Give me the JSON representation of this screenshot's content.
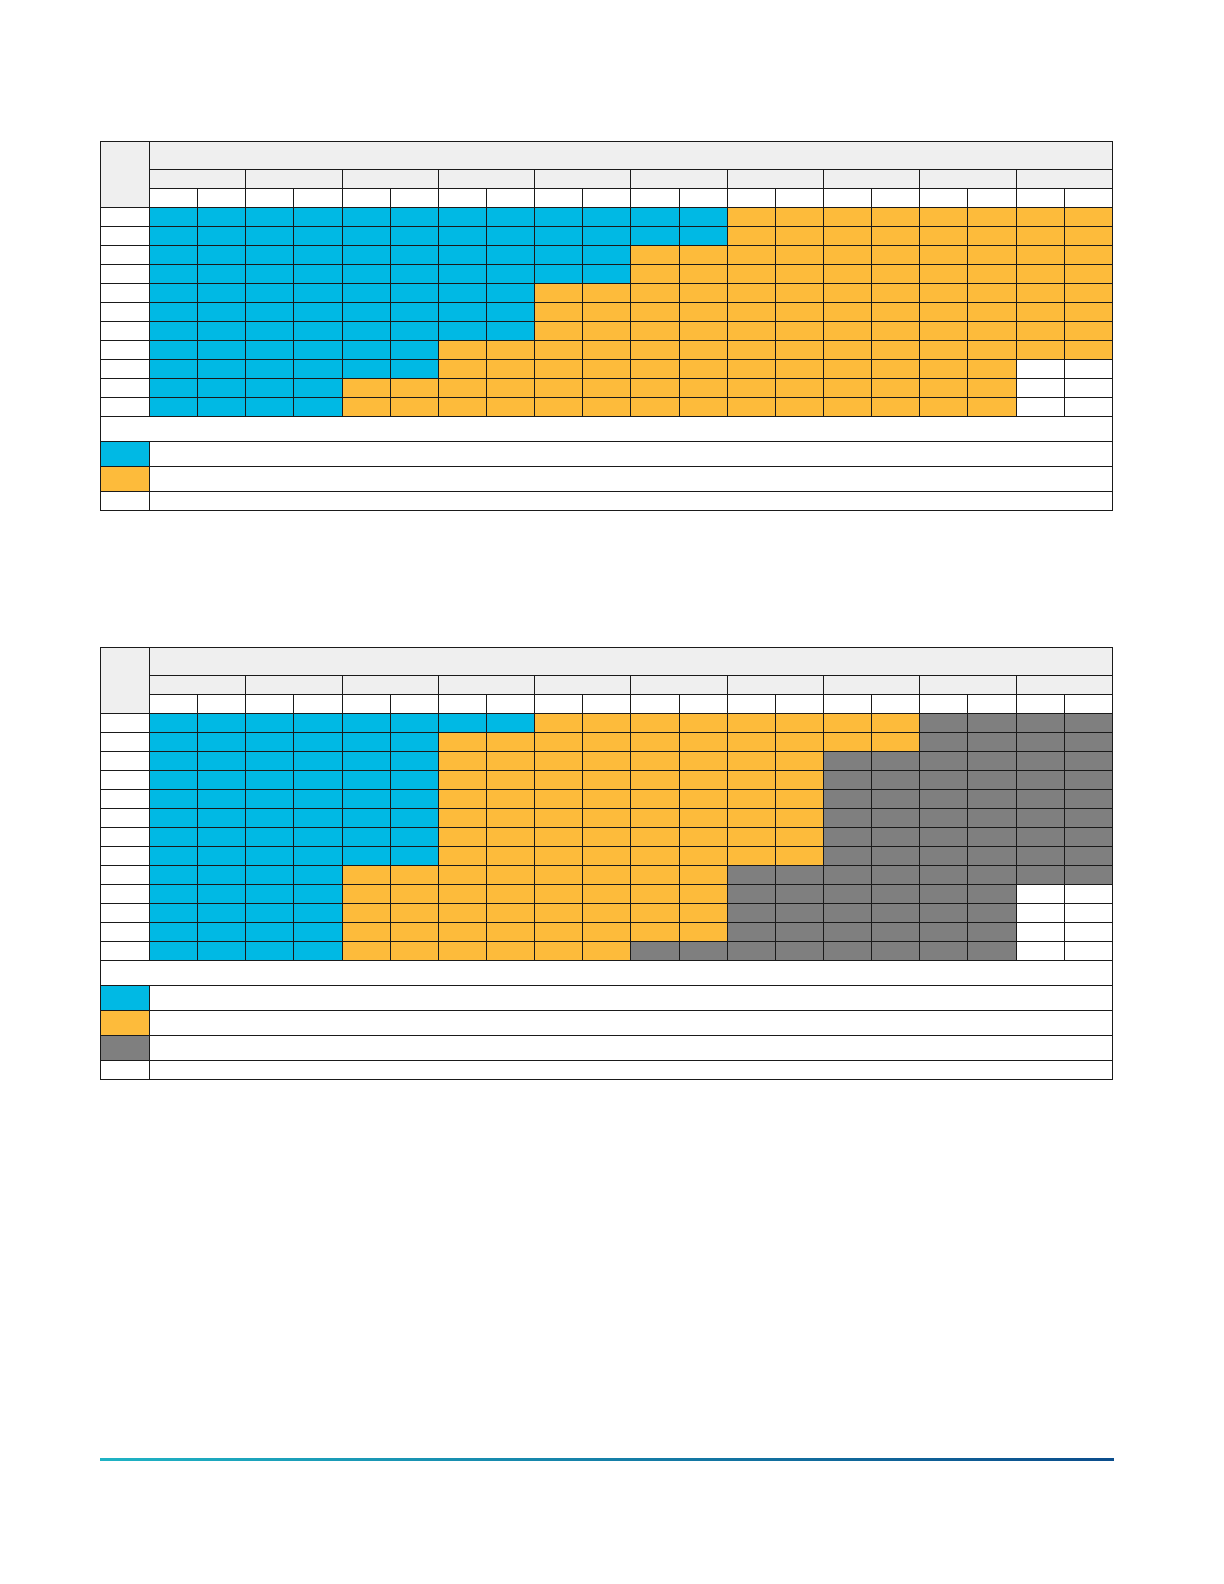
{
  "palette": {
    "cyan": "#00b9e4",
    "amber": "#fdbb3b",
    "gray": "#7f7f7f",
    "blank": "#ffffff",
    "header": "#efefef",
    "rule_start": "#1fb3c4",
    "rule_end": "#0b4d8c"
  },
  "tables": [
    {
      "name": "upper-grid",
      "legend": [
        "cyan",
        "amber",
        "blank"
      ],
      "rows": [
        "BBBBBBBBBBBBYYYYYYYY",
        "BBBBBBBBBBBBYYYYYYYY",
        "BBBBBBBBBBYYYYYYYYYY",
        "BBBBBBBBBBYYYYYYYYYY",
        "BBBBBBBBYYYYYYYYYYYY",
        "BBBBBBBBYYYYYYYYYYYY",
        "BBBBBBBBYYYYYYYYYYYY",
        "BBBBBBYYYYYYYYYYYYYY",
        "BBBBBBYYYYYYYYYYYYWW",
        "BBBBYYYYYYYYYYYYYYWW",
        "BBBBYYYYYYYYYYYYYYWW"
      ]
    },
    {
      "name": "lower-grid",
      "legend": [
        "cyan",
        "amber",
        "gray",
        "blank"
      ],
      "rows": [
        "BBBBBBBBYYYYYYYYGGGG",
        "BBBBBBYYYYYYYYYYGGGG",
        "BBBBBBYYYYYYYYGGGGGG",
        "BBBBBBYYYYYYYYGGGGGG",
        "BBBBBBYYYYYYYYGGGGGG",
        "BBBBBBYYYYYYYYGGGGGG",
        "BBBBBBYYYYYYYYGGGGGG",
        "BBBBBBYYYYYYYYGGGGGG",
        "BBBBYYYYYYYYGGGGGGGG",
        "BBBBYYYYYYYYGGGGGGWW",
        "BBBBYYYYYYYYGGGGGGWW",
        "BBBBYYYYYYYYGGGGGGWW",
        "BBBBYYYYYYGGGGGGGGWW"
      ]
    }
  ]
}
